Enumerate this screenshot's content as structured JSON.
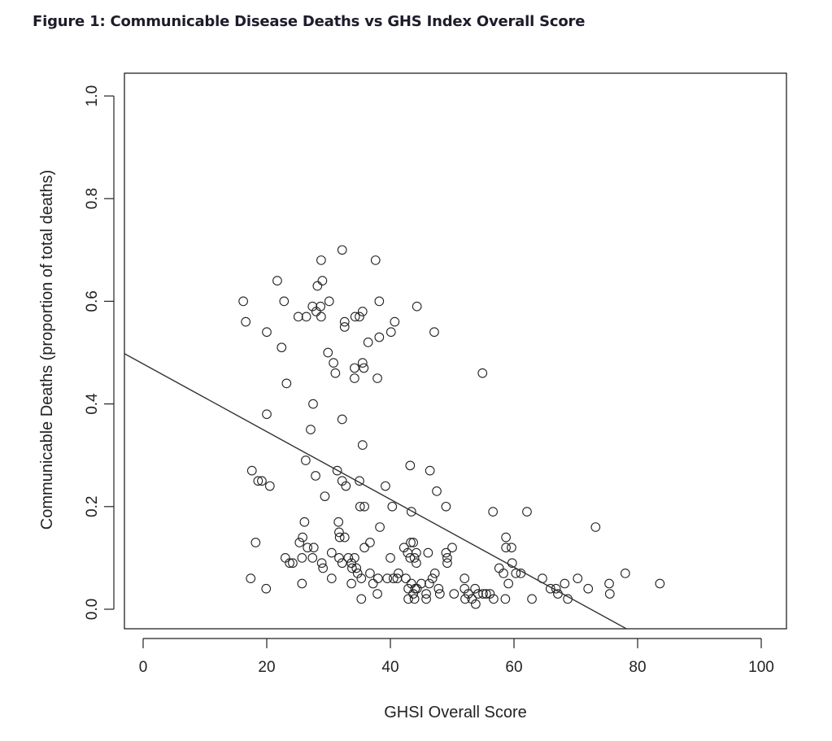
{
  "chart_data": {
    "type": "scatter",
    "title": "Figure 1: Communicable Disease Deaths vs GHS Index Overall Score",
    "xlabel": "GHSI Overall Score",
    "ylabel": "Communicable Deaths (proportion of total deaths)",
    "xlim": [
      -3,
      104
    ],
    "ylim": [
      -0.04,
      1.04
    ],
    "x_ticks": [
      0,
      20,
      40,
      60,
      80,
      100
    ],
    "x_tick_labels": [
      "0",
      "20",
      "40",
      "60",
      "80",
      "100"
    ],
    "y_ticks": [
      0.0,
      0.2,
      0.4,
      0.6,
      0.8,
      1.0
    ],
    "y_tick_labels": [
      "0.0",
      "0.2",
      "0.4",
      "0.6",
      "0.8",
      "1.0"
    ],
    "grid": false,
    "regression_line": {
      "intercept": 0.478,
      "slope": -0.0066
    },
    "points": [
      [
        16.2,
        0.6
      ],
      [
        16.6,
        0.56
      ],
      [
        21.7,
        0.64
      ],
      [
        22.8,
        0.6
      ],
      [
        20,
        0.54
      ],
      [
        22.4,
        0.51
      ],
      [
        23.2,
        0.44
      ],
      [
        20,
        0.38
      ],
      [
        17.6,
        0.27
      ],
      [
        18.6,
        0.25
      ],
      [
        19.2,
        0.25
      ],
      [
        20.5,
        0.24
      ],
      [
        18.2,
        0.13
      ],
      [
        17.4,
        0.06
      ],
      [
        19.9,
        0.04
      ],
      [
        23,
        0.1
      ],
      [
        23.7,
        0.09
      ],
      [
        24.2,
        0.09
      ],
      [
        25.3,
        0.13
      ],
      [
        25.8,
        0.14
      ],
      [
        26.1,
        0.17
      ],
      [
        26.3,
        0.29
      ],
      [
        27.1,
        0.35
      ],
      [
        27.5,
        0.4
      ],
      [
        27.9,
        0.26
      ],
      [
        29.4,
        0.22
      ],
      [
        25.7,
        0.1
      ],
      [
        26.6,
        0.12
      ],
      [
        27.4,
        0.1
      ],
      [
        27.6,
        0.12
      ],
      [
        25.7,
        0.05
      ],
      [
        28.9,
        0.09
      ],
      [
        29.1,
        0.08
      ],
      [
        30.5,
        0.06
      ],
      [
        30.5,
        0.11
      ],
      [
        25.1,
        0.57
      ],
      [
        26.4,
        0.57
      ],
      [
        27.4,
        0.59
      ],
      [
        28,
        0.58
      ],
      [
        28.8,
        0.57
      ],
      [
        28.7,
        0.59
      ],
      [
        30.1,
        0.6
      ],
      [
        28.2,
        0.63
      ],
      [
        29,
        0.64
      ],
      [
        28.8,
        0.68
      ],
      [
        32.2,
        0.7
      ],
      [
        29.9,
        0.5
      ],
      [
        30.8,
        0.48
      ],
      [
        31.1,
        0.46
      ],
      [
        32.2,
        0.37
      ],
      [
        31.4,
        0.27
      ],
      [
        32.2,
        0.25
      ],
      [
        32.8,
        0.24
      ],
      [
        31.6,
        0.17
      ],
      [
        31.7,
        0.15
      ],
      [
        31.8,
        0.14
      ],
      [
        32.6,
        0.14
      ],
      [
        31.7,
        0.1
      ],
      [
        32.2,
        0.09
      ],
      [
        33.2,
        0.1
      ],
      [
        33.7,
        0.09
      ],
      [
        34.2,
        0.1
      ],
      [
        34.5,
        0.08
      ],
      [
        33.8,
        0.08
      ],
      [
        34.7,
        0.07
      ],
      [
        35.3,
        0.06
      ],
      [
        35.3,
        0.02
      ],
      [
        33.7,
        0.05
      ],
      [
        32.6,
        0.56
      ],
      [
        32.6,
        0.55
      ],
      [
        34.3,
        0.57
      ],
      [
        35,
        0.57
      ],
      [
        35.5,
        0.58
      ],
      [
        34.2,
        0.47
      ],
      [
        34.2,
        0.45
      ],
      [
        35.5,
        0.48
      ],
      [
        35.7,
        0.47
      ],
      [
        36.4,
        0.52
      ],
      [
        35.5,
        0.32
      ],
      [
        35,
        0.25
      ],
      [
        35.1,
        0.2
      ],
      [
        35.8,
        0.2
      ],
      [
        35.8,
        0.12
      ],
      [
        36.7,
        0.13
      ],
      [
        36.7,
        0.07
      ],
      [
        37.2,
        0.05
      ],
      [
        38,
        0.06
      ],
      [
        37.9,
        0.03
      ],
      [
        38.3,
        0.16
      ],
      [
        37.6,
        0.68
      ],
      [
        38.2,
        0.6
      ],
      [
        38.2,
        0.53
      ],
      [
        37.9,
        0.45
      ],
      [
        39.2,
        0.24
      ],
      [
        40,
        0.1
      ],
      [
        39.5,
        0.06
      ],
      [
        40.5,
        0.06
      ],
      [
        41.1,
        0.06
      ],
      [
        41.3,
        0.07
      ],
      [
        40.3,
        0.2
      ],
      [
        40.1,
        0.54
      ],
      [
        40.7,
        0.56
      ],
      [
        44.3,
        0.59
      ],
      [
        47.1,
        0.54
      ],
      [
        43.2,
        0.28
      ],
      [
        46.4,
        0.27
      ],
      [
        43.4,
        0.19
      ],
      [
        47.5,
        0.23
      ],
      [
        49,
        0.2
      ],
      [
        42.2,
        0.12
      ],
      [
        42.8,
        0.11
      ],
      [
        43.3,
        0.13
      ],
      [
        43.7,
        0.13
      ],
      [
        43.2,
        0.1
      ],
      [
        43.9,
        0.1
      ],
      [
        44.2,
        0.11
      ],
      [
        44.2,
        0.09
      ],
      [
        46.1,
        0.11
      ],
      [
        42.5,
        0.06
      ],
      [
        42.9,
        0.04
      ],
      [
        42.9,
        0.02
      ],
      [
        43.4,
        0.05
      ],
      [
        43.7,
        0.03
      ],
      [
        44,
        0.04
      ],
      [
        44.3,
        0.04
      ],
      [
        43.9,
        0.02
      ],
      [
        45,
        0.05
      ],
      [
        45.8,
        0.03
      ],
      [
        45.8,
        0.02
      ],
      [
        46.3,
        0.05
      ],
      [
        46.8,
        0.06
      ],
      [
        47.2,
        0.07
      ],
      [
        47.8,
        0.04
      ],
      [
        48,
        0.03
      ],
      [
        49,
        0.11
      ],
      [
        49.2,
        0.1
      ],
      [
        49.2,
        0.09
      ],
      [
        50,
        0.12
      ],
      [
        50.3,
        0.03
      ],
      [
        52,
        0.06
      ],
      [
        52,
        0.04
      ],
      [
        52.1,
        0.02
      ],
      [
        52.6,
        0.03
      ],
      [
        53.2,
        0.02
      ],
      [
        53.7,
        0.04
      ],
      [
        53.8,
        0.01
      ],
      [
        54.2,
        0.03
      ],
      [
        55,
        0.03
      ],
      [
        55.5,
        0.03
      ],
      [
        56.1,
        0.03
      ],
      [
        56.7,
        0.02
      ],
      [
        54.9,
        0.46
      ],
      [
        56.6,
        0.19
      ],
      [
        57.6,
        0.08
      ],
      [
        58.3,
        0.07
      ],
      [
        58.6,
        0.02
      ],
      [
        58.7,
        0.14
      ],
      [
        58.7,
        0.12
      ],
      [
        59.6,
        0.12
      ],
      [
        59.1,
        0.05
      ],
      [
        59.7,
        0.09
      ],
      [
        60.3,
        0.07
      ],
      [
        61.1,
        0.07
      ],
      [
        62.1,
        0.19
      ],
      [
        62.9,
        0.02
      ],
      [
        64.6,
        0.06
      ],
      [
        65.9,
        0.04
      ],
      [
        66.8,
        0.04
      ],
      [
        67.1,
        0.03
      ],
      [
        68.2,
        0.05
      ],
      [
        68.7,
        0.02
      ],
      [
        70.3,
        0.06
      ],
      [
        72,
        0.04
      ],
      [
        73.2,
        0.16
      ],
      [
        75.4,
        0.05
      ],
      [
        75.5,
        0.03
      ],
      [
        78,
        0.07
      ],
      [
        83.6,
        0.05
      ]
    ]
  }
}
